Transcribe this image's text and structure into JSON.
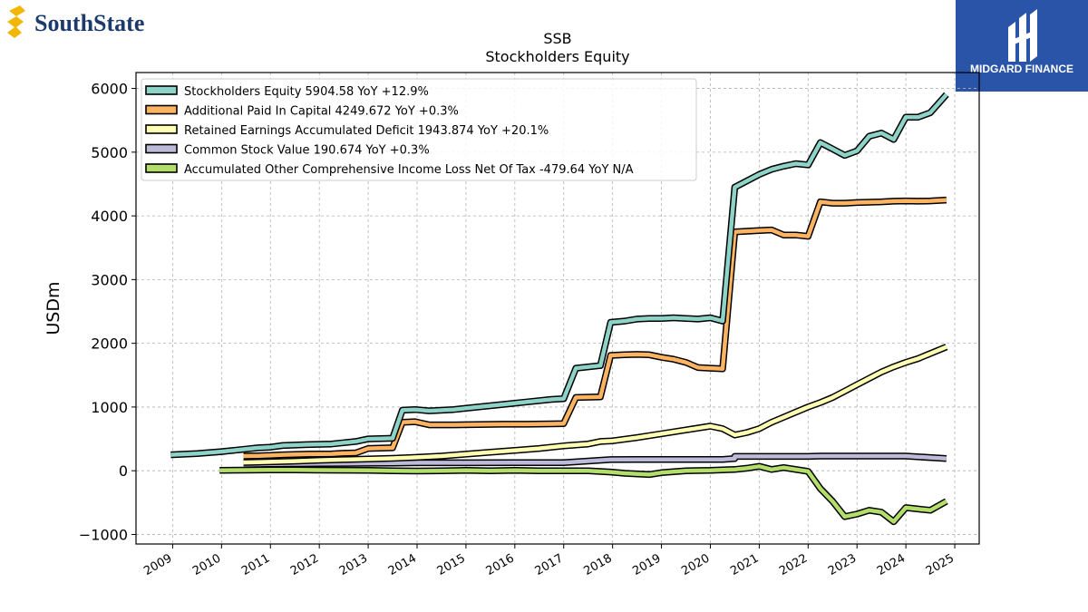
{
  "logos": {
    "left_text": "SouthState",
    "right_text": "MIDGARD FINANCE",
    "brand_navy": "#1b3a6b",
    "brand_gold": "#f2b705",
    "right_bg": "#2a54a8"
  },
  "chart_data": {
    "type": "line",
    "title": "SSB",
    "subtitle": "Stockholders  Equity",
    "ylabel": "USDm",
    "xlabel": "",
    "ylim": [
      -1150,
      6250
    ],
    "xlim": [
      2008.25,
      2025.5
    ],
    "yticks": [
      -1000,
      0,
      1000,
      2000,
      3000,
      4000,
      5000,
      6000
    ],
    "yticks_labels": [
      "−1000",
      "0",
      "1000",
      "2000",
      "3000",
      "4000",
      "5000",
      "6000"
    ],
    "xticks": [
      2009,
      2010,
      2011,
      2012,
      2013,
      2014,
      2015,
      2016,
      2017,
      2018,
      2019,
      2020,
      2021,
      2022,
      2023,
      2024,
      2025
    ],
    "xticks_labels": [
      "2009",
      "2010",
      "2011",
      "2012",
      "2013",
      "2014",
      "2015",
      "2016",
      "2017",
      "2018",
      "2019",
      "2020",
      "2021",
      "2022",
      "2023",
      "2024",
      "2025"
    ],
    "grid": true,
    "legend_position": "top-left",
    "series": [
      {
        "name": "Stockholders Equity  5904.58 YoY +12.9%",
        "color": "#8dd3c7",
        "points": [
          [
            2008.96,
            250
          ],
          [
            2009.5,
            270
          ],
          [
            2010,
            300
          ],
          [
            2010.5,
            340
          ],
          [
            2010.75,
            360
          ],
          [
            2011,
            370
          ],
          [
            2011.25,
            395
          ],
          [
            2011.75,
            410
          ],
          [
            2012.25,
            420
          ],
          [
            2012.5,
            440
          ],
          [
            2012.75,
            460
          ],
          [
            2013,
            500
          ],
          [
            2013.5,
            510
          ],
          [
            2013.7,
            950
          ],
          [
            2013.96,
            960
          ],
          [
            2014.25,
            940
          ],
          [
            2014.75,
            960
          ],
          [
            2015.25,
            1000
          ],
          [
            2015.75,
            1040
          ],
          [
            2016.25,
            1080
          ],
          [
            2016.75,
            1120
          ],
          [
            2017,
            1130
          ],
          [
            2017.25,
            1610
          ],
          [
            2017.75,
            1650
          ],
          [
            2017.96,
            2330
          ],
          [
            2018.25,
            2350
          ],
          [
            2018.5,
            2380
          ],
          [
            2018.75,
            2390
          ],
          [
            2019,
            2390
          ],
          [
            2019.25,
            2400
          ],
          [
            2019.5,
            2390
          ],
          [
            2019.75,
            2380
          ],
          [
            2020,
            2400
          ],
          [
            2020.25,
            2350
          ],
          [
            2020.5,
            4450
          ],
          [
            2020.75,
            4550
          ],
          [
            2021,
            4650
          ],
          [
            2021.25,
            4730
          ],
          [
            2021.5,
            4780
          ],
          [
            2021.75,
            4820
          ],
          [
            2022,
            4800
          ],
          [
            2022.25,
            5150
          ],
          [
            2022.5,
            5050
          ],
          [
            2022.75,
            4950
          ],
          [
            2023,
            5020
          ],
          [
            2023.25,
            5250
          ],
          [
            2023.5,
            5300
          ],
          [
            2023.75,
            5200
          ],
          [
            2024,
            5550
          ],
          [
            2024.25,
            5550
          ],
          [
            2024.5,
            5620
          ],
          [
            2024.83,
            5904.58
          ]
        ]
      },
      {
        "name": "Additional Paid In Capital  4249.672 YoY +0.3%",
        "color": "#fdb462",
        "points": [
          [
            2010.45,
            230
          ],
          [
            2010.75,
            235
          ],
          [
            2011,
            240
          ],
          [
            2011.25,
            250
          ],
          [
            2011.75,
            260
          ],
          [
            2012.25,
            265
          ],
          [
            2012.5,
            275
          ],
          [
            2012.75,
            280
          ],
          [
            2013,
            350
          ],
          [
            2013.5,
            360
          ],
          [
            2013.7,
            760
          ],
          [
            2013.96,
            770
          ],
          [
            2014.25,
            720
          ],
          [
            2014.75,
            720
          ],
          [
            2015.25,
            725
          ],
          [
            2015.75,
            730
          ],
          [
            2016.25,
            730
          ],
          [
            2016.75,
            735
          ],
          [
            2017,
            740
          ],
          [
            2017.25,
            1150
          ],
          [
            2017.75,
            1160
          ],
          [
            2017.96,
            1810
          ],
          [
            2018.25,
            1820
          ],
          [
            2018.5,
            1825
          ],
          [
            2018.75,
            1820
          ],
          [
            2019,
            1780
          ],
          [
            2019.25,
            1750
          ],
          [
            2019.5,
            1700
          ],
          [
            2019.75,
            1620
          ],
          [
            2020,
            1610
          ],
          [
            2020.25,
            1600
          ],
          [
            2020.5,
            3750
          ],
          [
            2020.75,
            3760
          ],
          [
            2021,
            3770
          ],
          [
            2021.25,
            3780
          ],
          [
            2021.5,
            3700
          ],
          [
            2021.75,
            3700
          ],
          [
            2022,
            3680
          ],
          [
            2022.25,
            4220
          ],
          [
            2022.5,
            4200
          ],
          [
            2022.75,
            4200
          ],
          [
            2023,
            4210
          ],
          [
            2023.25,
            4215
          ],
          [
            2023.5,
            4220
          ],
          [
            2023.75,
            4230
          ],
          [
            2024,
            4235
          ],
          [
            2024.25,
            4230
          ],
          [
            2024.5,
            4235
          ],
          [
            2024.83,
            4249.672
          ]
        ]
      },
      {
        "name": "Retained Earnings Accumulated Deficit  1943.874 YoY +20.1%",
        "color": "#ffffb3",
        "points": [
          [
            2010.45,
            130
          ],
          [
            2011,
            140
          ],
          [
            2011.5,
            150
          ],
          [
            2012,
            165
          ],
          [
            2012.5,
            175
          ],
          [
            2013,
            185
          ],
          [
            2013.5,
            195
          ],
          [
            2014,
            210
          ],
          [
            2014.5,
            230
          ],
          [
            2015,
            260
          ],
          [
            2015.5,
            290
          ],
          [
            2016,
            320
          ],
          [
            2016.5,
            350
          ],
          [
            2017,
            390
          ],
          [
            2017.5,
            420
          ],
          [
            2017.75,
            460
          ],
          [
            2018,
            470
          ],
          [
            2018.5,
            520
          ],
          [
            2019,
            580
          ],
          [
            2019.5,
            640
          ],
          [
            2020,
            700
          ],
          [
            2020.25,
            660
          ],
          [
            2020.5,
            560
          ],
          [
            2020.75,
            600
          ],
          [
            2021,
            660
          ],
          [
            2021.25,
            760
          ],
          [
            2021.5,
            840
          ],
          [
            2021.75,
            920
          ],
          [
            2022,
            1000
          ],
          [
            2022.25,
            1070
          ],
          [
            2022.5,
            1150
          ],
          [
            2022.75,
            1250
          ],
          [
            2023,
            1350
          ],
          [
            2023.25,
            1450
          ],
          [
            2023.5,
            1550
          ],
          [
            2023.75,
            1630
          ],
          [
            2024,
            1700
          ],
          [
            2024.25,
            1760
          ],
          [
            2024.5,
            1840
          ],
          [
            2024.83,
            1943.874
          ]
        ]
      },
      {
        "name": "Common Stock Value  190.674 YoY +0.3%",
        "color": "#bebada",
        "points": [
          [
            2010.45,
            100
          ],
          [
            2011,
            105
          ],
          [
            2011.5,
            110
          ],
          [
            2012,
            112
          ],
          [
            2012.5,
            115
          ],
          [
            2013,
            118
          ],
          [
            2013.5,
            120
          ],
          [
            2014,
            125
          ],
          [
            2015,
            125
          ],
          [
            2016,
            126
          ],
          [
            2017,
            126
          ],
          [
            2017.25,
            140
          ],
          [
            2017.96,
            175
          ],
          [
            2018.5,
            176
          ],
          [
            2019,
            176
          ],
          [
            2019.5,
            176
          ],
          [
            2020.25,
            176
          ],
          [
            2020.5,
            190
          ],
          [
            2020.5,
            225
          ],
          [
            2021,
            225
          ],
          [
            2022,
            225
          ],
          [
            2022.25,
            230
          ],
          [
            2023,
            230
          ],
          [
            2024,
            230
          ],
          [
            2024.83,
            190.674
          ]
        ]
      },
      {
        "name": "Accumulated Other Comprehensive Income Loss Net Of Tax  -479.64 YoY N/A",
        "color": "#b3de69",
        "points": [
          [
            2009.96,
            5
          ],
          [
            2010.5,
            10
          ],
          [
            2011,
            12
          ],
          [
            2011.5,
            12
          ],
          [
            2012,
            10
          ],
          [
            2012.5,
            8
          ],
          [
            2013,
            5
          ],
          [
            2013.5,
            0
          ],
          [
            2014,
            -5
          ],
          [
            2014.5,
            0
          ],
          [
            2015,
            5
          ],
          [
            2015.5,
            0
          ],
          [
            2016,
            5
          ],
          [
            2016.5,
            0
          ],
          [
            2017,
            0
          ],
          [
            2017.5,
            0
          ],
          [
            2017.96,
            -20
          ],
          [
            2018.25,
            -40
          ],
          [
            2018.75,
            -60
          ],
          [
            2019,
            -30
          ],
          [
            2019.5,
            0
          ],
          [
            2020,
            5
          ],
          [
            2020.5,
            20
          ],
          [
            2020.75,
            40
          ],
          [
            2021,
            70
          ],
          [
            2021.25,
            20
          ],
          [
            2021.5,
            50
          ],
          [
            2022,
            -10
          ],
          [
            2022.25,
            -280
          ],
          [
            2022.5,
            -480
          ],
          [
            2022.75,
            -720
          ],
          [
            2023,
            -680
          ],
          [
            2023.25,
            -620
          ],
          [
            2023.5,
            -650
          ],
          [
            2023.75,
            -800
          ],
          [
            2024,
            -580
          ],
          [
            2024.25,
            -600
          ],
          [
            2024.5,
            -620
          ],
          [
            2024.83,
            -479.64
          ]
        ]
      }
    ]
  }
}
